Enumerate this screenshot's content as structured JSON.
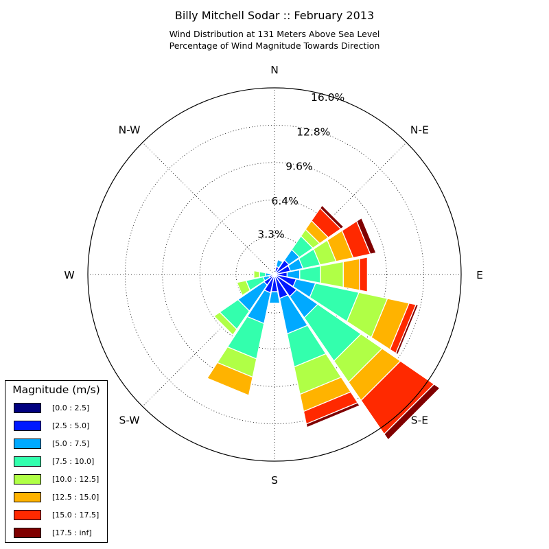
{
  "title": "Billy Mitchell Sodar :: February 2013",
  "subtitle_line1": "Wind Distribution at 131 Meters Above Sea Level",
  "subtitle_line2": "Percentage of Wind Magnitude Towards Direction",
  "chart_data": {
    "type": "windrose",
    "radial_unit": "%",
    "radial_max": 16.0,
    "radial_ticks": [
      3.3,
      6.4,
      9.6,
      12.8,
      16.0
    ],
    "radial_tick_labels": [
      "3.3%",
      "6.4%",
      "9.6%",
      "12.8%",
      "16.0%"
    ],
    "direction_labels": [
      "N",
      "N-E",
      "E",
      "S-E",
      "S",
      "S-W",
      "W",
      "N-W"
    ],
    "legend_title": "Magnitude (m/s)",
    "bins": [
      {
        "label": "[0.0 : 2.5]",
        "color": "#000080"
      },
      {
        "label": "[2.5 : 5.0]",
        "color": "#0019ff"
      },
      {
        "label": "[5.0 : 7.5]",
        "color": "#00a9ff"
      },
      {
        "label": "[7.5 : 10.0]",
        "color": "#33ffad"
      },
      {
        "label": "[10.0 : 12.5]",
        "color": "#b0ff46"
      },
      {
        "label": "[12.5 : 15.0]",
        "color": "#ffb300"
      },
      {
        "label": "[15.0 : 17.5]",
        "color": "#ff2900"
      },
      {
        "label": "[17.5 : inf]",
        "color": "#800000"
      }
    ],
    "sectors": [
      {
        "direction_deg": 0,
        "cumulative": [
          0.1,
          0.1,
          0.1,
          0.1,
          0.1,
          0.1,
          0.1,
          0.1
        ]
      },
      {
        "direction_deg": 22.5,
        "cumulative": [
          0.1,
          0.7,
          1.3,
          1.3,
          1.3,
          1.3,
          1.3,
          1.3
        ]
      },
      {
        "direction_deg": 45,
        "cumulative": [
          0.2,
          1.5,
          2.6,
          4.0,
          4.7,
          5.6,
          6.9,
          7.2
        ]
      },
      {
        "direction_deg": 67.5,
        "cumulative": [
          0.1,
          1.4,
          2.5,
          4.0,
          5.4,
          6.9,
          8.4,
          8.9
        ]
      },
      {
        "direction_deg": 90,
        "cumulative": [
          0.1,
          1.1,
          2.2,
          4.0,
          6.0,
          7.4,
          8.1,
          8.1
        ]
      },
      {
        "direction_deg": 112.5,
        "cumulative": [
          0.2,
          1.9,
          3.6,
          7.4,
          9.9,
          11.8,
          12.4,
          12.6
        ]
      },
      {
        "direction_deg": 135,
        "cumulative": [
          0.2,
          2.3,
          4.5,
          9.0,
          11.2,
          13.1,
          16.6,
          17.2
        ]
      },
      {
        "direction_deg": 157.5,
        "cumulative": [
          0.2,
          2.1,
          5.2,
          8.1,
          10.5,
          12.0,
          13.1,
          13.4
        ]
      },
      {
        "direction_deg": 180,
        "cumulative": [
          0.2,
          1.5,
          2.5,
          2.5,
          2.5,
          2.5,
          2.5,
          2.5
        ]
      },
      {
        "direction_deg": 202.5,
        "cumulative": [
          0.2,
          1.6,
          4.3,
          7.4,
          9.0,
          10.6,
          10.6,
          10.6
        ]
      },
      {
        "direction_deg": 225,
        "cumulative": [
          0.2,
          1.1,
          3.8,
          5.7,
          6.3,
          6.3,
          6.3,
          6.3
        ]
      },
      {
        "direction_deg": 247.5,
        "cumulative": [
          0.1,
          0.5,
          1.0,
          2.5,
          3.3,
          3.3,
          3.3,
          3.3
        ]
      },
      {
        "direction_deg": 270,
        "cumulative": [
          0.1,
          0.3,
          0.8,
          1.3,
          1.8,
          1.8,
          1.8,
          1.8
        ]
      },
      {
        "direction_deg": 292.5,
        "cumulative": [
          0.1,
          0.1,
          0.1,
          0.1,
          0.1,
          0.1,
          0.1,
          0.1
        ]
      },
      {
        "direction_deg": 315,
        "cumulative": [
          0.1,
          0.1,
          0.1,
          0.1,
          0.1,
          0.1,
          0.1,
          0.1
        ]
      },
      {
        "direction_deg": 337.5,
        "cumulative": [
          0.1,
          0.1,
          0.1,
          0.1,
          0.1,
          0.1,
          0.1,
          0.1
        ]
      }
    ]
  }
}
